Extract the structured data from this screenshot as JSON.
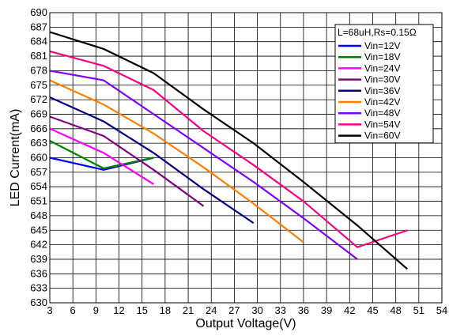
{
  "chart_data": {
    "type": "line",
    "xlabel": "Output Voltage(V)",
    "ylabel": "LED Current(mA)",
    "xlim": [
      3,
      54
    ],
    "ylim": [
      630,
      690
    ],
    "xticks": [
      "3",
      "6",
      "9",
      "12",
      "15",
      "18",
      "21",
      "24",
      "27",
      "30",
      "33",
      "36",
      "39",
      "42",
      "45",
      "48",
      "51",
      "54"
    ],
    "yticks": [
      "630",
      "633",
      "636",
      "639",
      "642",
      "645",
      "648",
      "651",
      "654",
      "657",
      "660",
      "663",
      "666",
      "669",
      "672",
      "675",
      "678",
      "681",
      "684",
      "687",
      "690"
    ],
    "grid": true,
    "legend": {
      "position": "top-right",
      "title": "L=68uH,Rs=0.15Ω"
    },
    "series": [
      {
        "name": "Vin=12V",
        "color": "#0000ff",
        "x": [
          3,
          10,
          16.5
        ],
        "y": [
          660,
          657.5,
          660
        ]
      },
      {
        "name": "Vin=18V",
        "color": "#008000",
        "x": [
          3,
          10,
          16.5
        ],
        "y": [
          663.5,
          657.8,
          660
        ]
      },
      {
        "name": "Vin=24V",
        "color": "#ff00ff",
        "x": [
          3,
          10,
          16.5
        ],
        "y": [
          666,
          661,
          654.5
        ]
      },
      {
        "name": "Vin=30V",
        "color": "#800080",
        "x": [
          3,
          10,
          16.5,
          23
        ],
        "y": [
          668.5,
          664.5,
          657.5,
          650
        ]
      },
      {
        "name": "Vin=36V",
        "color": "#000080",
        "x": [
          3,
          10,
          16.5,
          23,
          29.5
        ],
        "y": [
          672.5,
          667.5,
          661,
          653.5,
          646.5
        ]
      },
      {
        "name": "Vin=42V",
        "color": "#ff8000",
        "x": [
          3,
          10,
          16.5,
          23,
          29.5,
          36
        ],
        "y": [
          676,
          671,
          665,
          658,
          650.5,
          642.5
        ]
      },
      {
        "name": "Vin=48V",
        "color": "#8000ff",
        "x": [
          3,
          10,
          16.5,
          23,
          29.5,
          36,
          43
        ],
        "y": [
          678,
          676,
          669,
          662,
          655,
          647.5,
          639
        ]
      },
      {
        "name": "Vin=54V",
        "color": "#ff0080",
        "x": [
          3,
          10,
          16.5,
          23,
          29.5,
          36,
          43,
          49.5
        ],
        "y": [
          682,
          679,
          674,
          665.5,
          658.5,
          651,
          641.5,
          645
        ]
      },
      {
        "name": "Vin=60V",
        "color": "#000000",
        "x": [
          3,
          10,
          16.5,
          23,
          29.5,
          36,
          43,
          49.5
        ],
        "y": [
          686,
          682.5,
          677.5,
          670,
          663,
          655,
          646,
          637
        ]
      }
    ]
  }
}
